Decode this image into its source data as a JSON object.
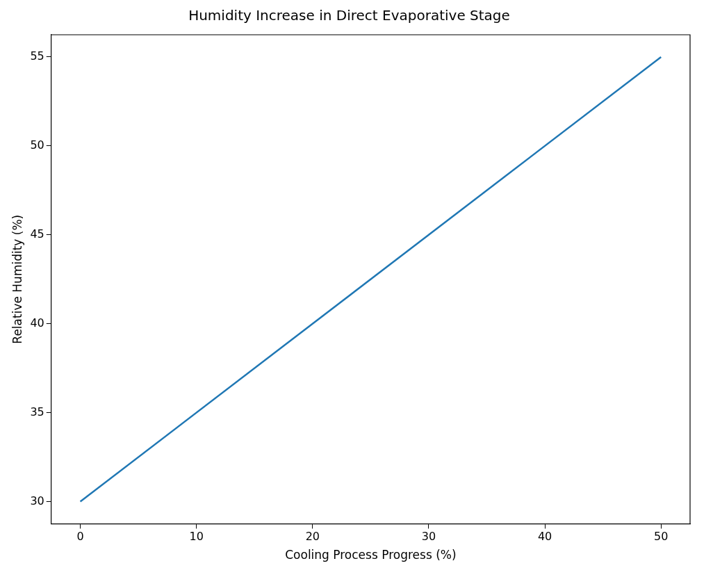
{
  "chart_data": {
    "type": "line",
    "title": "Humidity Increase in Direct Evaporative Stage",
    "xlabel": "Cooling Process Progress (%)",
    "ylabel": "Relative Humidity (%)",
    "x": [
      0,
      50
    ],
    "series": [
      {
        "color": "#1f77b4",
        "values": [
          30,
          55
        ]
      }
    ],
    "xlim": [
      -2.5,
      52.5
    ],
    "ylim": [
      28.75,
      56.25
    ],
    "xticks": [
      0,
      10,
      20,
      30,
      40,
      50
    ],
    "yticks": [
      30,
      35,
      40,
      45,
      50,
      55
    ],
    "grid": false,
    "legend": false,
    "marker": "none",
    "line_style": "solid"
  }
}
